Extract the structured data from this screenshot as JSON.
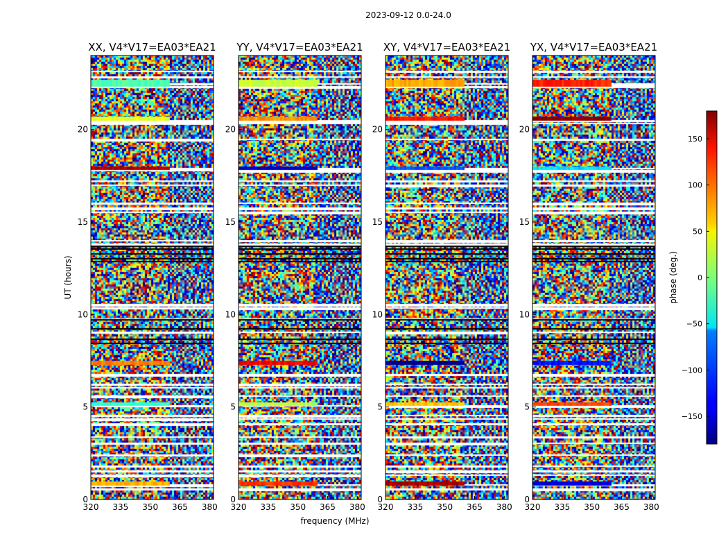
{
  "figure": {
    "suptitle": "2023-09-12 0.0-24.0",
    "xlabel": "frequency (MHz)",
    "ylabel": "UT (hours)",
    "colorbar_label": "phase (deg.)"
  },
  "chart_data": [
    {
      "type": "heatmap",
      "title": "XX, V4*V17=EA03*EA21",
      "x_ticks": [
        "320",
        "335",
        "350",
        "365",
        "380"
      ],
      "y_ticks": [
        "0",
        "5",
        "10",
        "15",
        "20"
      ],
      "xlim": [
        320,
        382
      ],
      "ylim": [
        0,
        24
      ],
      "xlabel": "frequency (MHz)",
      "ylabel": "UT (hours)",
      "value": "phase (deg.)",
      "vmin": -180,
      "vmax": 180,
      "seed": 11
    },
    {
      "type": "heatmap",
      "title": "YY, V4*V17=EA03*EA21",
      "x_ticks": [
        "320",
        "335",
        "350",
        "365",
        "380"
      ],
      "y_ticks": [
        "0",
        "5",
        "10",
        "15",
        "20"
      ],
      "xlim": [
        320,
        382
      ],
      "ylim": [
        0,
        24
      ],
      "value": "phase (deg.)",
      "vmin": -180,
      "vmax": 180,
      "seed": 23
    },
    {
      "type": "heatmap",
      "title": "XY, V4*V17=EA03*EA21",
      "x_ticks": [
        "320",
        "335",
        "350",
        "365",
        "380"
      ],
      "y_ticks": [
        "0",
        "5",
        "10",
        "15",
        "20"
      ],
      "xlim": [
        320,
        382
      ],
      "ylim": [
        0,
        24
      ],
      "value": "phase (deg.)",
      "vmin": -180,
      "vmax": 180,
      "seed": 37
    },
    {
      "type": "heatmap",
      "title": "YX, V4*V17=EA03*EA21",
      "x_ticks": [
        "320",
        "335",
        "350",
        "365",
        "380"
      ],
      "y_ticks": [
        "0",
        "5",
        "10",
        "15",
        "20"
      ],
      "xlim": [
        320,
        382
      ],
      "ylim": [
        0,
        24
      ],
      "value": "phase (deg.)",
      "vmin": -180,
      "vmax": 180,
      "seed": 53
    }
  ],
  "colorbar": {
    "colormap": "jet",
    "vmin": -180,
    "vmax": 180,
    "ticks": [
      "150",
      "100",
      "50",
      "0",
      "−50",
      "−100",
      "−150"
    ],
    "tick_values": [
      150,
      100,
      50,
      0,
      -50,
      -100,
      -150
    ]
  },
  "colors": {
    "flag_white": "#ffffff",
    "flag_black": "#000000",
    "axes": "#000000"
  }
}
